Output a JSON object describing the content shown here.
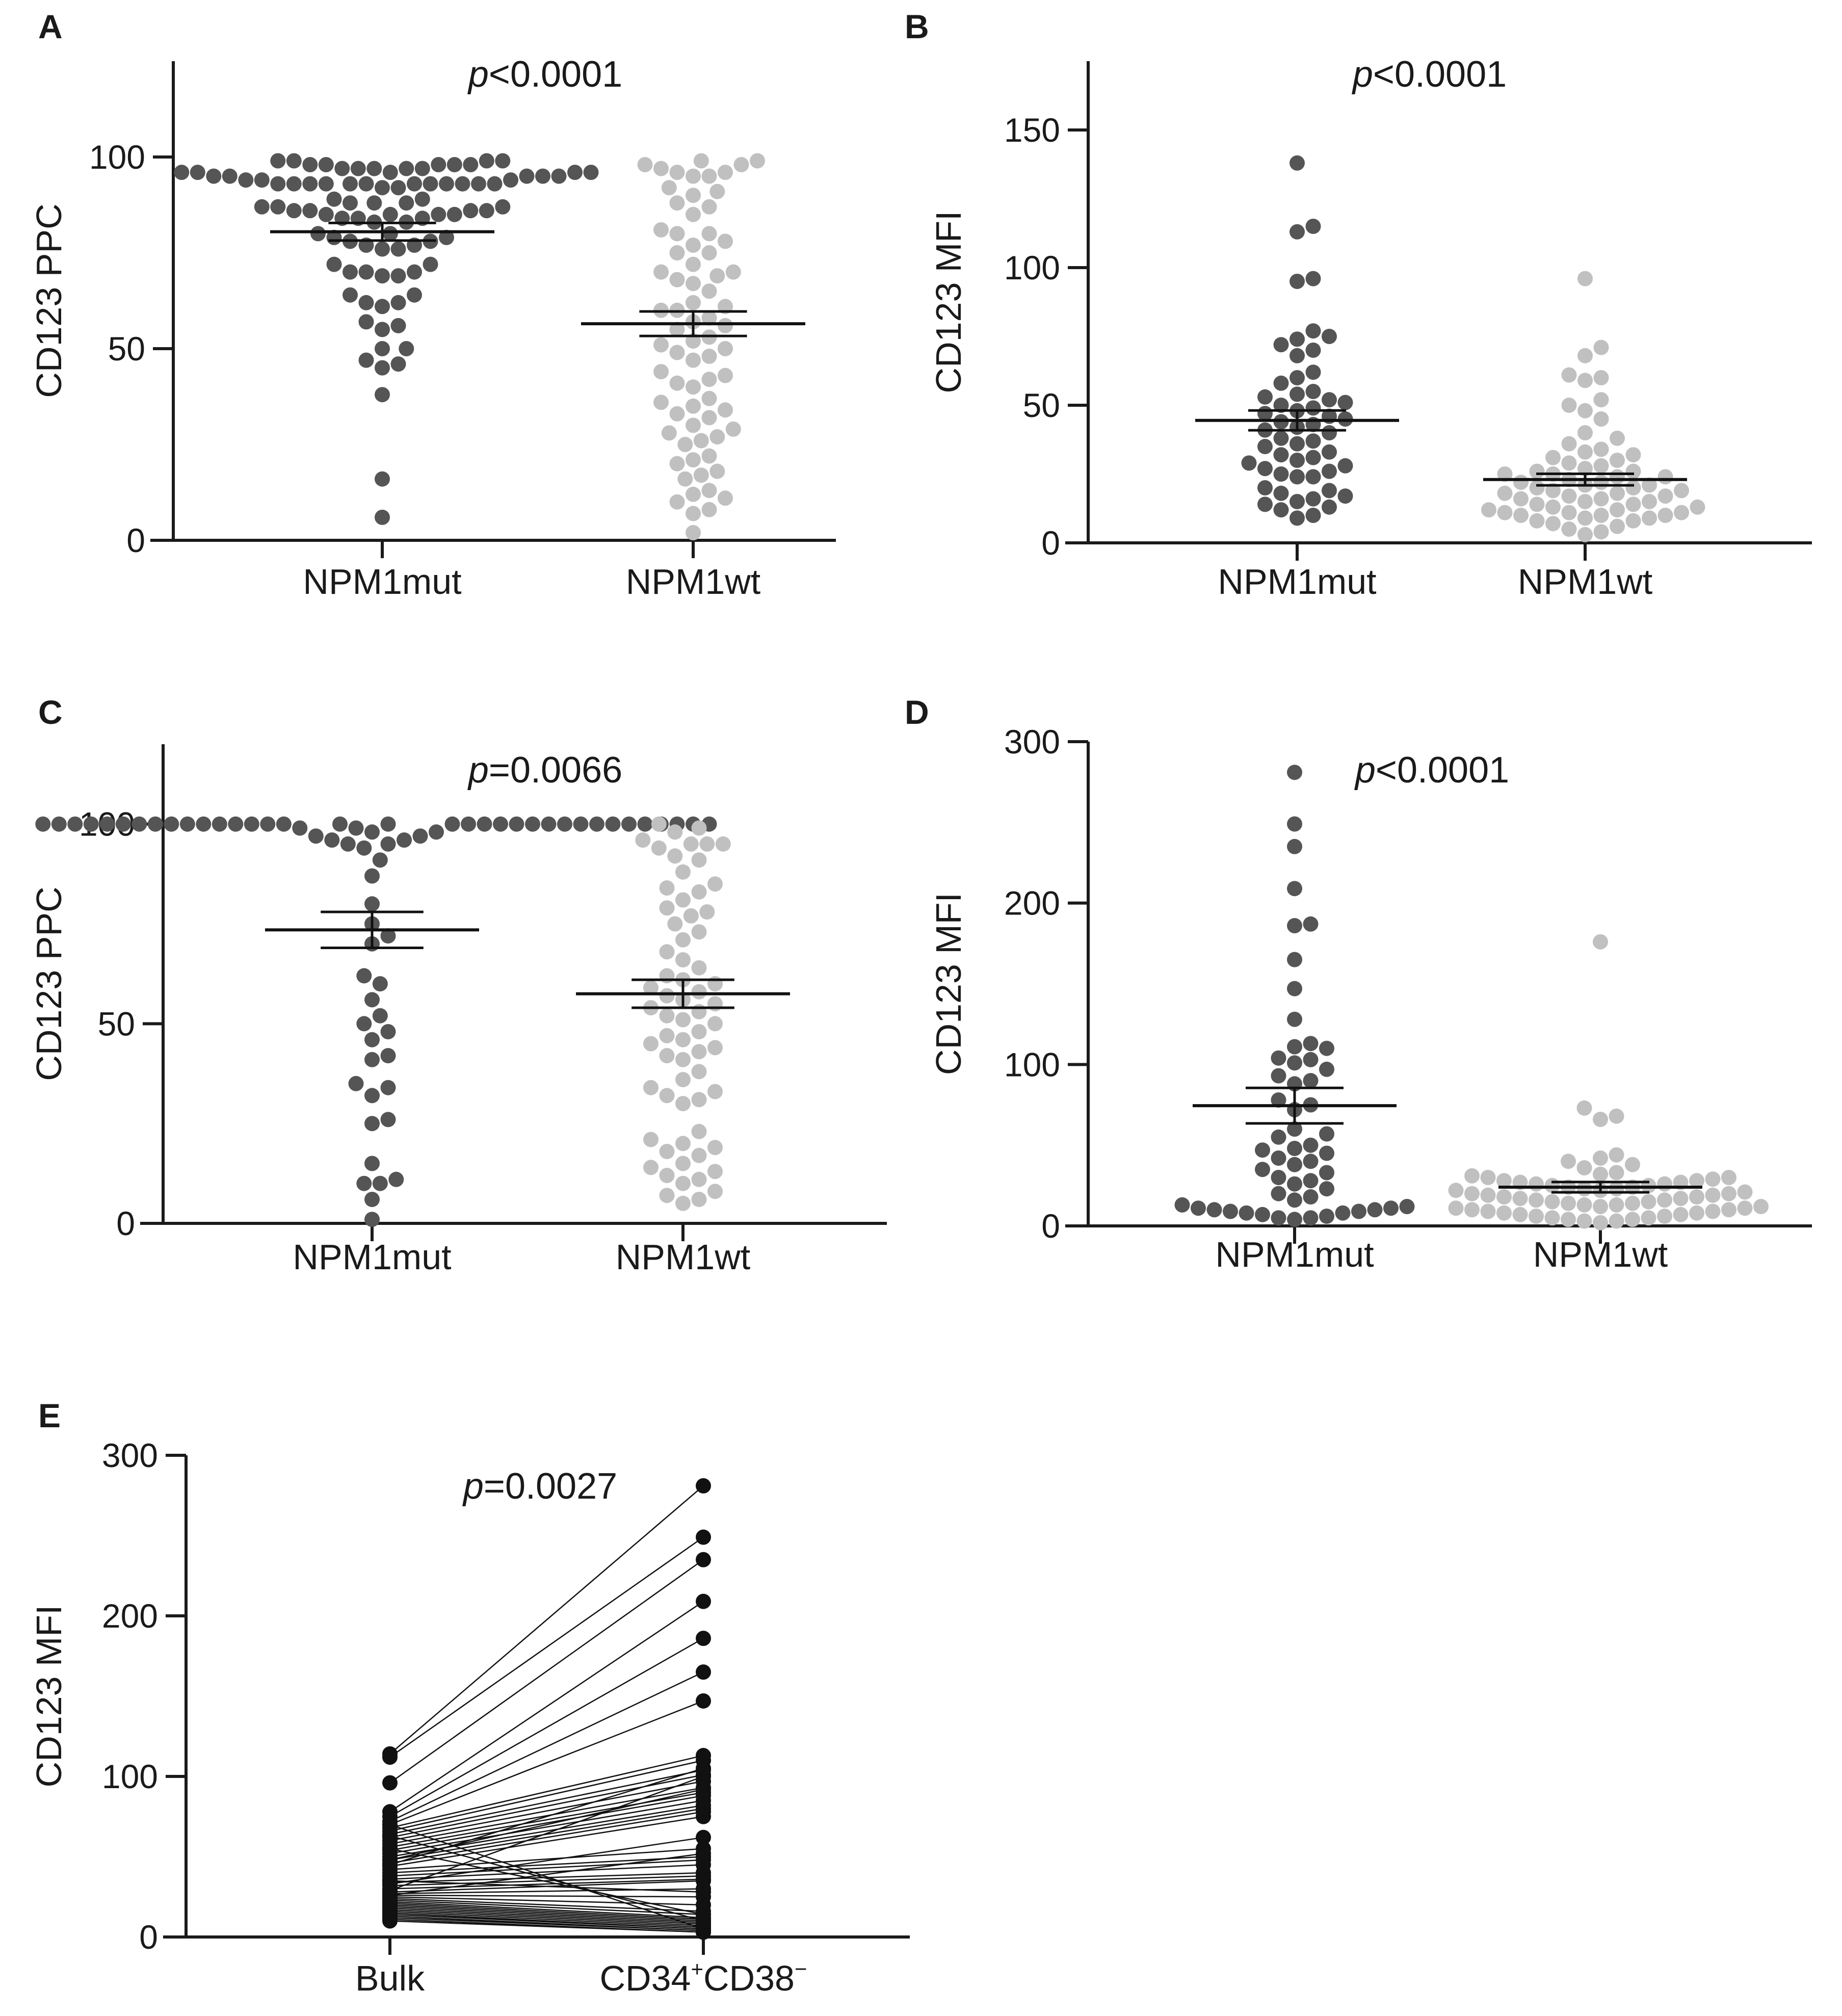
{
  "colors": {
    "mut": "#555555",
    "wt": "#c0c0c0",
    "paired": "#111111",
    "axis": "#1a1a1a"
  },
  "chart_data": [
    {
      "panel": "A",
      "type": "scatter",
      "ylabel": "CD123 PPC",
      "yticks": [
        0,
        50,
        100
      ],
      "ylim": [
        0,
        125
      ],
      "categories": [
        "NPM1mut",
        "NPM1wt"
      ],
      "p_italic": "p",
      "p_rest": "<0.0001",
      "series": [
        {
          "category": "NPM1mut",
          "color": "mut",
          "mean": 80.5,
          "sem": 2.3,
          "values": [
            99,
            99,
            98,
            98,
            98,
            97,
            97,
            97,
            96,
            96,
            96,
            95,
            95,
            95,
            94,
            94,
            94,
            95,
            95,
            96,
            96,
            97,
            97,
            98,
            98,
            99,
            99,
            93,
            93,
            93,
            93,
            93,
            93,
            93,
            93,
            93,
            93,
            93,
            93,
            92,
            92,
            89,
            89,
            88,
            88,
            88,
            87,
            87,
            87,
            86,
            86,
            86,
            86,
            85,
            85,
            85,
            85,
            84,
            84,
            84,
            83,
            83,
            80,
            80,
            79,
            79,
            78,
            78,
            77,
            77,
            76,
            76,
            72,
            72,
            70,
            70,
            70,
            69,
            69,
            64,
            64,
            62,
            62,
            61,
            57,
            56,
            55,
            50,
            50,
            47,
            46,
            45,
            38,
            16,
            6
          ]
        },
        {
          "category": "NPM1wt",
          "color": "wt",
          "mean": 56.5,
          "sem": 3.2,
          "values": [
            99,
            98,
            97,
            96,
            96,
            95,
            95,
            98,
            99,
            92,
            91,
            90,
            88,
            87,
            85,
            81,
            80,
            80,
            78,
            77,
            75,
            75,
            72,
            70,
            70,
            69,
            68,
            67,
            65,
            62,
            61,
            60,
            60,
            58,
            57,
            56,
            55,
            53,
            52,
            51,
            50,
            49,
            48,
            47,
            44,
            43,
            42,
            41,
            40,
            37,
            36,
            35,
            34,
            33,
            32,
            30,
            29,
            28,
            27,
            26,
            25,
            22,
            21,
            20,
            18,
            17,
            16,
            13,
            12,
            11,
            10,
            8,
            7,
            2
          ]
        }
      ]
    },
    {
      "panel": "B",
      "type": "scatter",
      "ylabel": "CD123 MFI",
      "yticks": [
        0,
        50,
        100,
        150
      ],
      "ylim": [
        0,
        175
      ],
      "categories": [
        "NPM1mut",
        "NPM1wt"
      ],
      "p_italic": "p",
      "p_rest": "<0.0001",
      "series": [
        {
          "category": "NPM1mut",
          "color": "mut",
          "mean": 44.5,
          "sem": 3.6,
          "values": [
            138,
            115,
            113,
            96,
            95,
            77,
            75,
            74,
            72,
            70,
            68,
            62,
            60,
            58,
            55,
            54,
            53,
            52,
            51,
            50,
            49,
            48,
            47,
            46,
            45,
            44,
            43,
            42,
            41,
            40,
            38,
            37,
            36,
            35,
            33,
            32,
            31,
            30,
            29,
            28,
            27,
            26,
            25,
            24,
            24,
            20,
            19,
            18,
            17,
            16,
            15,
            14,
            13,
            12,
            10,
            9
          ]
        },
        {
          "category": "NPM1wt",
          "color": "wt",
          "mean": 23,
          "sem": 2.1,
          "values": [
            96,
            71,
            68,
            61,
            60,
            59,
            52,
            50,
            48,
            45,
            40,
            38,
            36,
            34,
            33,
            32,
            31,
            30,
            29,
            28,
            27,
            26,
            26,
            25,
            25,
            24,
            24,
            23,
            22,
            22,
            21,
            21,
            20,
            20,
            19,
            19,
            18,
            18,
            17,
            17,
            16,
            16,
            15,
            15,
            14,
            14,
            13,
            13,
            12,
            12,
            11,
            11,
            11,
            10,
            10,
            10,
            9,
            9,
            8,
            8,
            7,
            6,
            5,
            4,
            3
          ]
        }
      ]
    },
    {
      "panel": "C",
      "type": "scatter",
      "ylabel": "CD123 PPC",
      "yticks": [
        0,
        50,
        100
      ],
      "ylim": [
        0,
        120
      ],
      "categories": [
        "NPM1mut",
        "NPM1wt"
      ],
      "p_italic": "p",
      "p_rest": "=0.0066",
      "series": [
        {
          "category": "NPM1mut",
          "color": "mut",
          "mean": 73.5,
          "sem": 4.5,
          "values": [
            100,
            100,
            100,
            100,
            100,
            100,
            100,
            100,
            100,
            100,
            100,
            100,
            100,
            100,
            100,
            100,
            100,
            100,
            100,
            100,
            100,
            100,
            100,
            100,
            100,
            100,
            100,
            100,
            100,
            100,
            100,
            100,
            100,
            100,
            100,
            99,
            99,
            98,
            98,
            97,
            97,
            96,
            96,
            95,
            95,
            94,
            91,
            87,
            80,
            75,
            72,
            70,
            62,
            60,
            56,
            52,
            50,
            48,
            46,
            42,
            41,
            35,
            34,
            32,
            26,
            25,
            15,
            11,
            10,
            10,
            6,
            1
          ]
        },
        {
          "category": "NPM1wt",
          "color": "wt",
          "mean": 57.5,
          "sem": 3.5,
          "values": [
            100,
            99,
            98,
            96,
            95,
            95,
            95,
            94,
            92,
            91,
            88,
            85,
            84,
            83,
            81,
            79,
            78,
            77,
            75,
            73,
            71,
            68,
            66,
            64,
            62,
            61,
            60,
            59,
            58,
            57,
            56,
            55,
            54,
            53,
            52,
            51,
            50,
            48,
            47,
            46,
            45,
            44,
            43,
            42,
            41,
            38,
            36,
            34,
            33,
            32,
            31,
            30,
            23,
            21,
            20,
            19,
            18,
            17,
            15,
            14,
            13,
            12,
            11,
            10,
            8,
            7,
            6,
            5
          ]
        }
      ]
    },
    {
      "panel": "D",
      "type": "scatter",
      "ylabel": "CD123 MFI",
      "yticks": [
        0,
        100,
        200,
        300
      ],
      "ylim": [
        0,
        300
      ],
      "categories": [
        "NPM1mut",
        "NPM1wt"
      ],
      "p_italic": "p",
      "p_rest": "<0.0001",
      "series": [
        {
          "category": "NPM1mut",
          "color": "mut",
          "mean": 74.5,
          "sem": 11,
          "values": [
            281,
            249,
            235,
            209,
            187,
            186,
            165,
            147,
            128,
            113,
            111,
            110,
            104,
            103,
            101,
            97,
            93,
            90,
            88,
            78,
            75,
            72,
            60,
            57,
            55,
            50,
            48,
            47,
            45,
            42,
            40,
            38,
            35,
            33,
            30,
            28,
            26,
            23,
            20,
            18,
            16,
            13,
            12,
            11,
            11,
            10,
            10,
            9,
            9,
            8,
            8,
            7,
            6,
            5,
            5,
            4
          ]
        },
        {
          "category": "NPM1wt",
          "color": "wt",
          "mean": 24,
          "sem": 3.2,
          "values": [
            176,
            73,
            68,
            66,
            44,
            42,
            40,
            38,
            36,
            33,
            32,
            31,
            30,
            30,
            29,
            28,
            28,
            27,
            27,
            26,
            26,
            25,
            25,
            24,
            24,
            23,
            23,
            22,
            22,
            21,
            20,
            20,
            19,
            19,
            18,
            18,
            17,
            17,
            16,
            16,
            15,
            15,
            14,
            14,
            13,
            13,
            12,
            12,
            11,
            11,
            10,
            10,
            9,
            9,
            8,
            8,
            7,
            7,
            6,
            6,
            5,
            5,
            4,
            4,
            3,
            3,
            2
          ]
        }
      ]
    },
    {
      "panel": "E",
      "type": "line",
      "ylabel": "CD123 MFI",
      "yticks": [
        0,
        100,
        200,
        300
      ],
      "ylim": [
        0,
        300
      ],
      "categories": [
        "Bulk",
        "CD34",
        "CD38"
      ],
      "cat2_main": "CD34",
      "cat2_sup1": "+",
      "cat2_mid": "CD38",
      "cat2_sup2": "−",
      "p_italic": "p",
      "p_rest": "=0.0027",
      "pairs": [
        [
          114,
          281
        ],
        [
          112,
          249
        ],
        [
          96,
          235
        ],
        [
          78,
          209
        ],
        [
          75,
          186
        ],
        [
          72,
          165
        ],
        [
          70,
          147
        ],
        [
          68,
          113
        ],
        [
          66,
          110
        ],
        [
          64,
          104
        ],
        [
          62,
          101
        ],
        [
          60,
          97
        ],
        [
          58,
          93
        ],
        [
          56,
          90
        ],
        [
          54,
          88
        ],
        [
          52,
          85
        ],
        [
          50,
          82
        ],
        [
          48,
          80
        ],
        [
          46,
          78
        ],
        [
          44,
          75
        ],
        [
          42,
          55
        ],
        [
          40,
          50
        ],
        [
          38,
          48
        ],
        [
          36,
          45
        ],
        [
          34,
          40
        ],
        [
          32,
          38
        ],
        [
          30,
          36
        ],
        [
          28,
          35
        ],
        [
          27,
          30
        ],
        [
          26,
          25
        ],
        [
          25,
          20
        ],
        [
          24,
          16
        ],
        [
          23,
          14
        ],
        [
          22,
          12
        ],
        [
          21,
          11
        ],
        [
          20,
          10
        ],
        [
          19,
          9
        ],
        [
          18,
          8
        ],
        [
          17,
          7
        ],
        [
          16,
          6
        ],
        [
          15,
          5
        ],
        [
          14,
          5
        ],
        [
          13,
          4
        ],
        [
          12,
          4
        ],
        [
          11,
          3
        ],
        [
          10,
          3
        ],
        [
          26,
          52
        ],
        [
          33,
          62
        ],
        [
          45,
          105
        ],
        [
          55,
          14
        ],
        [
          63,
          10
        ],
        [
          70,
          5
        ],
        [
          48,
          92
        ],
        [
          35,
          28
        ],
        [
          29,
          100
        ]
      ]
    }
  ]
}
